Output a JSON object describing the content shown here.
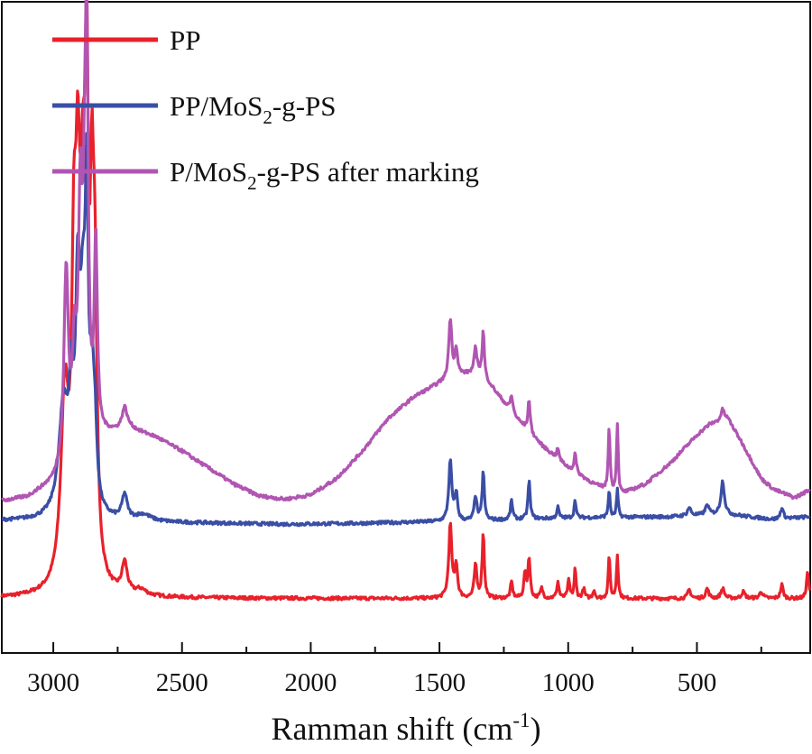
{
  "chart_data": {
    "type": "line",
    "title": "",
    "xlabel": "Ramman shift (cm",
    "xlabel_sup": "-1",
    "xlabel_close": ")",
    "ylabel": "",
    "xlim": [
      3200,
      60
    ],
    "ylim": [
      0,
      1
    ],
    "x_ticks": [
      3000,
      2500,
      2000,
      1500,
      1000,
      500
    ],
    "x_tick_labels": [
      "3000",
      "2500",
      "2000",
      "1500",
      "1000",
      "500"
    ],
    "x_minor_step": 250,
    "grid": false,
    "legend_position": "top-left",
    "series": [
      {
        "name": "PP",
        "legend_parts": [
          "PP",
          "",
          ""
        ],
        "color": "#e8212b",
        "baseline": [
          [
            3200,
            0.1
          ],
          [
            60,
            0.1
          ]
        ],
        "peaks": [
          [
            2955,
            0.34,
            18
          ],
          [
            2920,
            0.47,
            10
          ],
          [
            2905,
            0.51,
            10
          ],
          [
            2885,
            0.58,
            14
          ],
          [
            2870,
            0.68,
            7
          ],
          [
            2850,
            0.56,
            9
          ],
          [
            2838,
            0.42,
            9
          ],
          [
            2723,
            0.055,
            12
          ],
          [
            2660,
            0.01,
            25
          ],
          [
            1458,
            0.135,
            7
          ],
          [
            1435,
            0.06,
            6
          ],
          [
            1360,
            0.06,
            6
          ],
          [
            1330,
            0.12,
            5
          ],
          [
            1220,
            0.03,
            5
          ],
          [
            1168,
            0.045,
            5
          ],
          [
            1152,
            0.075,
            5
          ],
          [
            1103,
            0.018,
            6
          ],
          [
            1040,
            0.03,
            5
          ],
          [
            998,
            0.032,
            5
          ],
          [
            973,
            0.055,
            4
          ],
          [
            940,
            0.018,
            5
          ],
          [
            900,
            0.015,
            5
          ],
          [
            841,
            0.08,
            4
          ],
          [
            809,
            0.08,
            4
          ],
          [
            530,
            0.016,
            7
          ],
          [
            460,
            0.018,
            7
          ],
          [
            400,
            0.018,
            8
          ],
          [
            320,
            0.012,
            8
          ],
          [
            250,
            0.012,
            8
          ],
          [
            170,
            0.025,
            6
          ],
          [
            70,
            0.05,
            5
          ]
        ]
      },
      {
        "name": "PP/MoS2-g-PS",
        "legend_parts": [
          "PP/MoS",
          "2",
          "-g-PS"
        ],
        "color": "#3a4ea5",
        "baseline": [
          [
            3200,
            0.242
          ],
          [
            2400,
            0.238
          ],
          [
            2100,
            0.236
          ],
          [
            1800,
            0.238
          ],
          [
            1400,
            0.242
          ],
          [
            1000,
            0.248
          ],
          [
            600,
            0.25
          ],
          [
            400,
            0.255
          ],
          [
            200,
            0.245
          ],
          [
            60,
            0.25
          ]
        ],
        "peaks": [
          [
            2960,
            0.2,
            22
          ],
          [
            2930,
            0.18,
            10
          ],
          [
            2905,
            0.36,
            10
          ],
          [
            2885,
            0.32,
            13
          ],
          [
            2870,
            0.49,
            7
          ],
          [
            2850,
            0.2,
            9
          ],
          [
            2838,
            0.12,
            9
          ],
          [
            2723,
            0.045,
            12
          ],
          [
            2650,
            0.012,
            35
          ],
          [
            1458,
            0.11,
            7
          ],
          [
            1435,
            0.05,
            6
          ],
          [
            1360,
            0.045,
            6
          ],
          [
            1330,
            0.09,
            5
          ],
          [
            1220,
            0.035,
            5
          ],
          [
            1152,
            0.07,
            5
          ],
          [
            1040,
            0.02,
            5
          ],
          [
            973,
            0.035,
            4
          ],
          [
            841,
            0.05,
            4
          ],
          [
            809,
            0.05,
            4
          ],
          [
            530,
            0.015,
            8
          ],
          [
            460,
            0.018,
            8
          ],
          [
            400,
            0.06,
            8
          ],
          [
            170,
            0.02,
            7
          ]
        ]
      },
      {
        "name": "P/MoS2-g-PS after marking",
        "legend_parts": [
          "P/MoS",
          "2",
          "-g-PS after marking"
        ],
        "color": "#b155b2",
        "baseline": [
          [
            3200,
            0.278
          ],
          [
            3100,
            0.285
          ],
          [
            3000,
            0.31
          ],
          [
            2950,
            0.34
          ],
          [
            2850,
            0.385
          ],
          [
            2780,
            0.4
          ],
          [
            2700,
            0.41
          ],
          [
            2600,
            0.395
          ],
          [
            2500,
            0.37
          ],
          [
            2400,
            0.34
          ],
          [
            2300,
            0.31
          ],
          [
            2200,
            0.288
          ],
          [
            2100,
            0.282
          ],
          [
            2000,
            0.29
          ],
          [
            1900,
            0.32
          ],
          [
            1800,
            0.37
          ],
          [
            1700,
            0.43
          ],
          [
            1600,
            0.47
          ],
          [
            1500,
            0.495
          ],
          [
            1420,
            0.51
          ],
          [
            1350,
            0.515
          ],
          [
            1300,
            0.49
          ],
          [
            1250,
            0.46
          ],
          [
            1200,
            0.43
          ],
          [
            1100,
            0.38
          ],
          [
            1000,
            0.34
          ],
          [
            900,
            0.31
          ],
          [
            800,
            0.29
          ],
          [
            700,
            0.31
          ],
          [
            600,
            0.35
          ],
          [
            500,
            0.4
          ],
          [
            450,
            0.42
          ],
          [
            380,
            0.43
          ],
          [
            330,
            0.39
          ],
          [
            250,
            0.32
          ],
          [
            200,
            0.3
          ],
          [
            120,
            0.285
          ],
          [
            60,
            0.3
          ]
        ],
        "peaks": [
          [
            2950,
            0.35,
            10
          ],
          [
            2918,
            0.17,
            9
          ],
          [
            2895,
            0.42,
            9
          ],
          [
            2878,
            0.3,
            8
          ],
          [
            2870,
            0.63,
            7
          ],
          [
            2835,
            0.35,
            7
          ],
          [
            2723,
            0.04,
            12
          ],
          [
            1458,
            0.11,
            7
          ],
          [
            1435,
            0.05,
            6
          ],
          [
            1360,
            0.045,
            6
          ],
          [
            1330,
            0.085,
            5
          ],
          [
            1220,
            0.03,
            6
          ],
          [
            1152,
            0.06,
            5
          ],
          [
            1040,
            0.02,
            5
          ],
          [
            973,
            0.035,
            5
          ],
          [
            841,
            0.12,
            4
          ],
          [
            809,
            0.13,
            4
          ],
          [
            400,
            0.02,
            8
          ]
        ]
      }
    ]
  }
}
